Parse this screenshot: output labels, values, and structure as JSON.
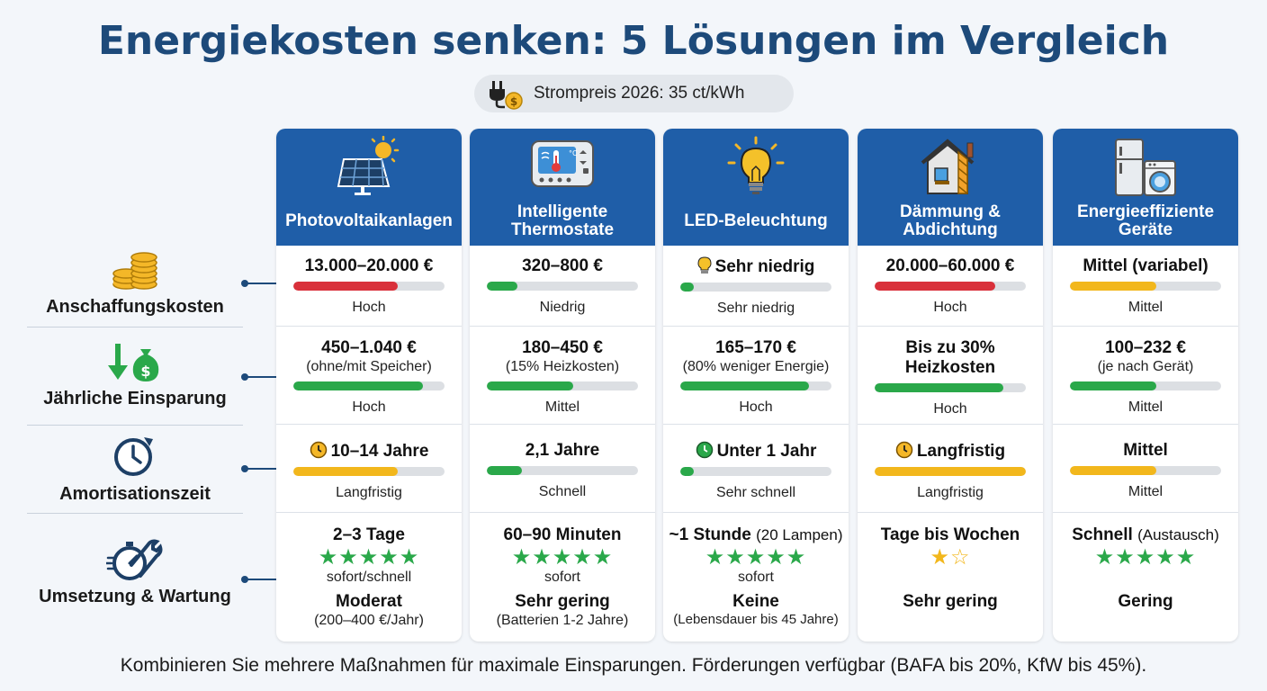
{
  "title": "Energiekosten senken: 5 Lösungen im Vergleich",
  "price_badge": {
    "text": "Strompreis 2026: 35 ct/kWh",
    "icon": "plug-coin-icon"
  },
  "colors": {
    "header_blue": "#1f5ea8",
    "title_blue": "#1d4a7a",
    "bar_red": "#d9303a",
    "bar_green": "#2aa84a",
    "bar_yellow": "#f2b71c",
    "bar_track": "#dcdfe3"
  },
  "row_labels": [
    {
      "label": "Anschaffungskosten",
      "icon": "coins-icon"
    },
    {
      "label": "Jährliche Einsparung",
      "icon": "savings-arrow-money-bag-icon"
    },
    {
      "label": "Amortisationszeit",
      "icon": "clock-arrow-icon"
    },
    {
      "label": "Umsetzung & Wartung",
      "icon": "stopwatch-wrench-icon"
    }
  ],
  "columns": [
    {
      "name": "Photovoltaikanlagen",
      "icon": "solar-panel-icon",
      "cost": {
        "value": "13.000–20.000 €",
        "level": "Hoch",
        "bar_fraction": 0.69,
        "bar_color": "red"
      },
      "savings": {
        "value": "450–1.040 €",
        "note": "(ohne/mit Speicher)",
        "level": "Hoch",
        "bar_fraction": 0.86,
        "bar_color": "green"
      },
      "payback": {
        "value": "10–14 Jahre",
        "icon": "clock-yellow-icon",
        "level": "Langfristig",
        "bar_fraction": 0.69,
        "bar_color": "yellow"
      },
      "implementation": {
        "time": "2–3 Tage",
        "time_note": "",
        "stars": "★★★★★",
        "star_count": 5,
        "star_color": "green",
        "effect": "sofort/schnell",
        "maintenance": "Moderat",
        "maintenance_note": "(200–400 €/Jahr)"
      }
    },
    {
      "name": "Intelligente Thermostate",
      "icon": "thermostat-icon",
      "cost": {
        "value": "320–800 €",
        "level": "Niedrig",
        "bar_fraction": 0.2,
        "bar_color": "green"
      },
      "savings": {
        "value": "180–450 €",
        "note": "(15% Heizkosten)",
        "level": "Mittel",
        "bar_fraction": 0.57,
        "bar_color": "green"
      },
      "payback": {
        "value": "2,1 Jahre",
        "icon": "",
        "level": "Schnell",
        "bar_fraction": 0.23,
        "bar_color": "green"
      },
      "implementation": {
        "time": "60–90 Minuten",
        "time_note": "",
        "stars": "★★★★★",
        "star_count": 5,
        "star_color": "green",
        "effect": "sofort",
        "maintenance": "Sehr gering",
        "maintenance_note": "(Batterien 1-2 Jahre)"
      }
    },
    {
      "name": "LED-Beleuchtung",
      "icon": "light-bulb-icon",
      "cost": {
        "value": "Sehr niedrig",
        "icon": "light-bulb-small-icon",
        "level": "Sehr niedrig",
        "bar_fraction": 0.09,
        "bar_color": "green"
      },
      "savings": {
        "value": "165–170 €",
        "note": "(80% weniger Energie)",
        "level": "Hoch",
        "bar_fraction": 0.85,
        "bar_color": "green"
      },
      "payback": {
        "value": "Unter 1 Jahr",
        "icon": "clock-green-icon",
        "level": "Sehr schnell",
        "bar_fraction": 0.09,
        "bar_color": "green"
      },
      "implementation": {
        "time": "~1 Stunde",
        "time_note": "(20 Lampen)",
        "stars": "★★★★★",
        "star_count": 5,
        "star_color": "green",
        "effect": "sofort",
        "maintenance": "Keine",
        "maintenance_note": "(Lebensdauer bis 45 Jahre)"
      }
    },
    {
      "name": "Dämmung & Abdichtung",
      "icon": "house-insulation-icon",
      "cost": {
        "value": "20.000–60.000 €",
        "level": "Hoch",
        "bar_fraction": 0.8,
        "bar_color": "red"
      },
      "savings": {
        "value": "Bis zu 30% Heizkosten",
        "note": "",
        "level": "Hoch",
        "bar_fraction": 0.85,
        "bar_color": "green"
      },
      "payback": {
        "value": "Langfristig",
        "icon": "clock-yellow-icon",
        "level": "Langfristig",
        "bar_fraction": 1.0,
        "bar_color": "yellow"
      },
      "implementation": {
        "time": "Tage bis Wochen",
        "time_note": "",
        "stars": "★☆",
        "star_count": 1,
        "star_color": "gold",
        "effect": "",
        "maintenance": "Sehr gering",
        "maintenance_note": ""
      }
    },
    {
      "name": "Energieeffiziente Geräte",
      "icon": "fridge-washer-icon",
      "cost": {
        "value": "Mittel (variabel)",
        "level": "Mittel",
        "bar_fraction": 0.57,
        "bar_color": "yellow"
      },
      "savings": {
        "value": "100–232 €",
        "note": "(je nach Gerät)",
        "level": "Mittel",
        "bar_fraction": 0.57,
        "bar_color": "green"
      },
      "payback": {
        "value": "Mittel",
        "icon": "",
        "level": "Mittel",
        "bar_fraction": 0.57,
        "bar_color": "yellow"
      },
      "implementation": {
        "time": "Schnell",
        "time_note": "(Austausch)",
        "stars": "★★★★★",
        "star_count": 5,
        "star_color": "green",
        "effect": "",
        "maintenance": "Gering",
        "maintenance_note": ""
      }
    }
  ],
  "footer": "Kombinieren Sie mehrere Maßnahmen für maximale Einsparungen. Förderungen verfügbar (BAFA bis 20%, KfW bis 45%)."
}
